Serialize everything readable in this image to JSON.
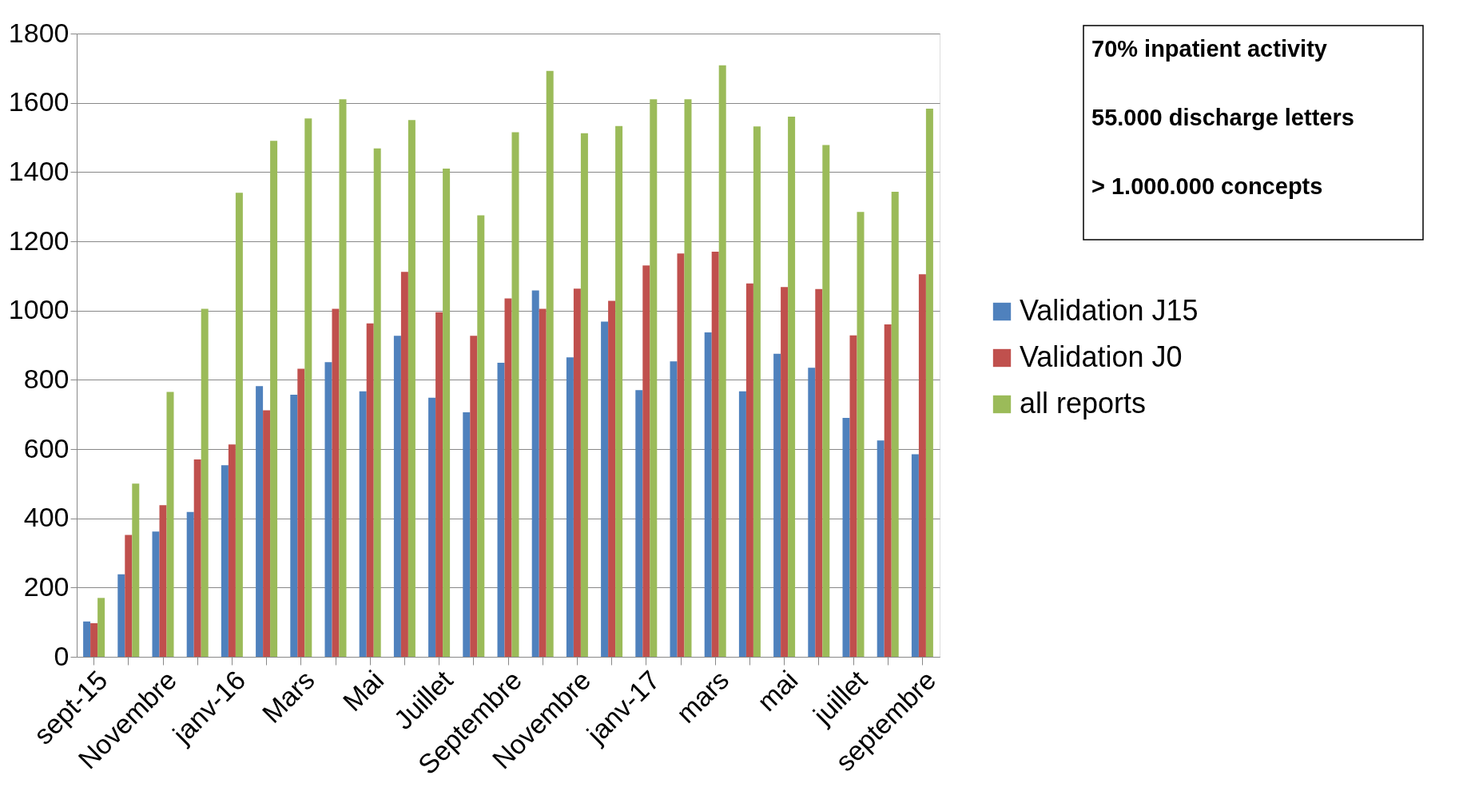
{
  "chart_data": {
    "type": "bar",
    "categories": [
      "sept-15",
      null,
      "Novembre",
      null,
      "janv-16",
      null,
      "Mars",
      null,
      "Mai",
      null,
      "Juillet",
      null,
      "Septembre",
      null,
      "Novembre",
      null,
      "janv-17",
      null,
      "mars",
      null,
      "mai",
      null,
      "juillet",
      null,
      "septembre"
    ],
    "series": [
      {
        "name": "Validation J15",
        "color": "#4f81bd",
        "values": [
          102,
          238,
          362,
          418,
          553,
          782,
          757,
          851,
          767,
          927,
          748,
          706,
          849,
          1058,
          865,
          968,
          770,
          853,
          937,
          767,
          875,
          835,
          690,
          625,
          585
        ]
      },
      {
        "name": "Validation J0",
        "color": "#c0504d",
        "values": [
          97,
          352,
          438,
          570,
          613,
          712,
          832,
          1005,
          963,
          1112,
          995,
          927,
          1035,
          1005,
          1063,
          1028,
          1130,
          1165,
          1170,
          1078,
          1068,
          1062,
          928,
          960,
          1105
        ]
      },
      {
        "name": "all reports",
        "color": "#9bbb59",
        "values": [
          170,
          500,
          765,
          1005,
          1340,
          1490,
          1555,
          1610,
          1468,
          1550,
          1410,
          1275,
          1515,
          1692,
          1512,
          1533,
          1610,
          1610,
          1708,
          1532,
          1560,
          1478,
          1285,
          1343,
          1583
        ]
      }
    ],
    "ylim": [
      0,
      1800
    ],
    "yticks": [
      0,
      200,
      400,
      600,
      800,
      1000,
      1200,
      1400,
      1600,
      1800
    ],
    "grid": "y",
    "legend": "right",
    "annotations": [
      "70% inpatient activity",
      "55.000 discharge letters",
      "> 1.000.000 concepts"
    ]
  }
}
